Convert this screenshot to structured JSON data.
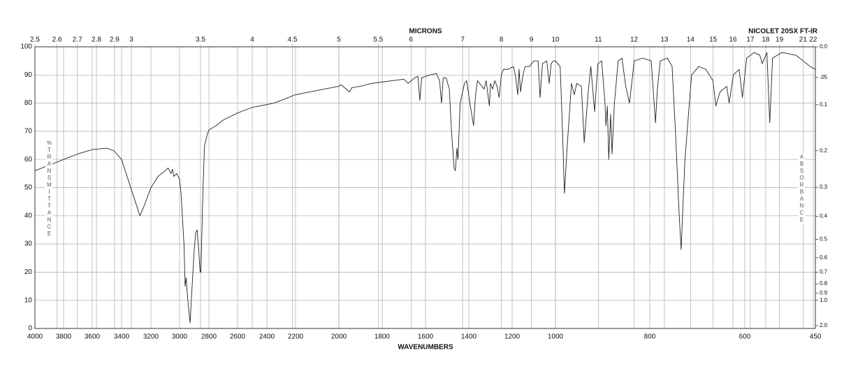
{
  "chart_data": {
    "type": "line",
    "title": "NICOLET 20SX FT-IR",
    "xlabel": "WAVENUMBERS",
    "x2label": "MICRONS",
    "ylabel": "%TRANSMITTANCE",
    "y2label": "ABSORBANCE",
    "color": "#222222",
    "grid": true,
    "xlim": [
      4000,
      450
    ],
    "ylim": [
      0,
      100
    ],
    "xticks": [
      4000,
      3800,
      3600,
      3400,
      3200,
      3000,
      2800,
      2600,
      2400,
      2200,
      2000,
      1800,
      1600,
      1400,
      1200,
      1000,
      800,
      600,
      450
    ],
    "x2ticks": [
      2.5,
      2.6,
      2.7,
      2.8,
      2.9,
      3,
      3.5,
      4,
      4.5,
      5,
      5.5,
      6,
      7,
      8,
      9,
      10,
      11,
      12,
      13,
      14,
      15,
      16,
      17,
      18,
      19,
      21,
      22
    ],
    "yticks": [
      0,
      10,
      20,
      30,
      40,
      50,
      60,
      70,
      80,
      90,
      100
    ],
    "y2ticks": [
      {
        "value": 0,
        "label": "0.0"
      },
      {
        "value": 0.05,
        "label": ".05"
      },
      0.1,
      0.2,
      0.3,
      0.4,
      0.5,
      0.6,
      0.7,
      0.8,
      0.9,
      {
        "value": 1,
        "label": "1.0"
      },
      {
        "value": 2,
        "label": "2.0"
      }
    ],
    "x": [
      4000,
      3900,
      3800,
      3700,
      3600,
      3500,
      3450,
      3400,
      3350,
      3300,
      3275,
      3250,
      3200,
      3150,
      3100,
      3080,
      3060,
      3050,
      3040,
      3020,
      3000,
      2990,
      2970,
      2962,
      2955,
      2950,
      2940,
      2928,
      2920,
      2900,
      2890,
      2880,
      2870,
      2860,
      2855,
      2850,
      2840,
      2830,
      2810,
      2800,
      2750,
      2700,
      2600,
      2500,
      2400,
      2350,
      2300,
      2200,
      2100,
      2000,
      1990,
      1950,
      1940,
      1900,
      1850,
      1800,
      1750,
      1700,
      1680,
      1650,
      1635,
      1626,
      1618,
      1580,
      1550,
      1535,
      1526,
      1518,
      1505,
      1490,
      1480,
      1468,
      1462,
      1455,
      1450,
      1440,
      1420,
      1410,
      1395,
      1378,
      1370,
      1360,
      1340,
      1330,
      1320,
      1305,
      1300,
      1290,
      1280,
      1270,
      1260,
      1250,
      1240,
      1220,
      1194,
      1185,
      1174,
      1168,
      1161,
      1150,
      1140,
      1120,
      1100,
      1080,
      1071,
      1060,
      1040,
      1029,
      1020,
      1010,
      1000,
      990,
      985,
      981,
      975,
      966,
      960,
      955,
      945,
      939,
      930,
      925,
      917,
      910,
      902,
      895,
      893,
      890,
      887,
      883,
      880,
      875,
      867,
      859,
      851,
      843,
      833,
      815,
      797,
      788,
      784,
      778,
      763,
      753,
      746,
      738,
      734,
      726,
      712,
      697,
      682,
      667,
      661,
      652,
      638,
      633,
      624,
      612,
      605,
      596,
      580,
      568,
      563,
      553,
      547,
      541,
      521,
      491,
      461,
      450
    ],
    "values": [
      56,
      58,
      60,
      62,
      63.5,
      64,
      63,
      60,
      52,
      44,
      40,
      43,
      50,
      54,
      56,
      57,
      55,
      56.5,
      54,
      55,
      53,
      48,
      30,
      15,
      18,
      14,
      8,
      2,
      10,
      28,
      34,
      35,
      28,
      20,
      20,
      30,
      50,
      65,
      69,
      70.5,
      72,
      74,
      76.5,
      78.5,
      79.5,
      80,
      81,
      83,
      84.5,
      86,
      86.5,
      84,
      85.5,
      86,
      87,
      87.5,
      88,
      88.5,
      87,
      89,
      89.5,
      81,
      89,
      90,
      90.5,
      88,
      80,
      89,
      89,
      85,
      70,
      57,
      56,
      64,
      60,
      80,
      87,
      88,
      80,
      72,
      82,
      88,
      86,
      85,
      88,
      79,
      87,
      85,
      88,
      86,
      82,
      90,
      92,
      92,
      93,
      90,
      83,
      92,
      84,
      90,
      93,
      93,
      95,
      95,
      82,
      94,
      95,
      87,
      94,
      95,
      95,
      93,
      70,
      48,
      65,
      87,
      83,
      87,
      86,
      66,
      85,
      93,
      77,
      94,
      95,
      80,
      72,
      79,
      60,
      76,
      62,
      80,
      95,
      96,
      86,
      80,
      95,
      96,
      95,
      73,
      85,
      95,
      96,
      93,
      70,
      40,
      28,
      60,
      90,
      93,
      92,
      88,
      79,
      84,
      86,
      80,
      90,
      92,
      82,
      96,
      98,
      97,
      94,
      98,
      73,
      96,
      98,
      97,
      93,
      92
    ]
  }
}
